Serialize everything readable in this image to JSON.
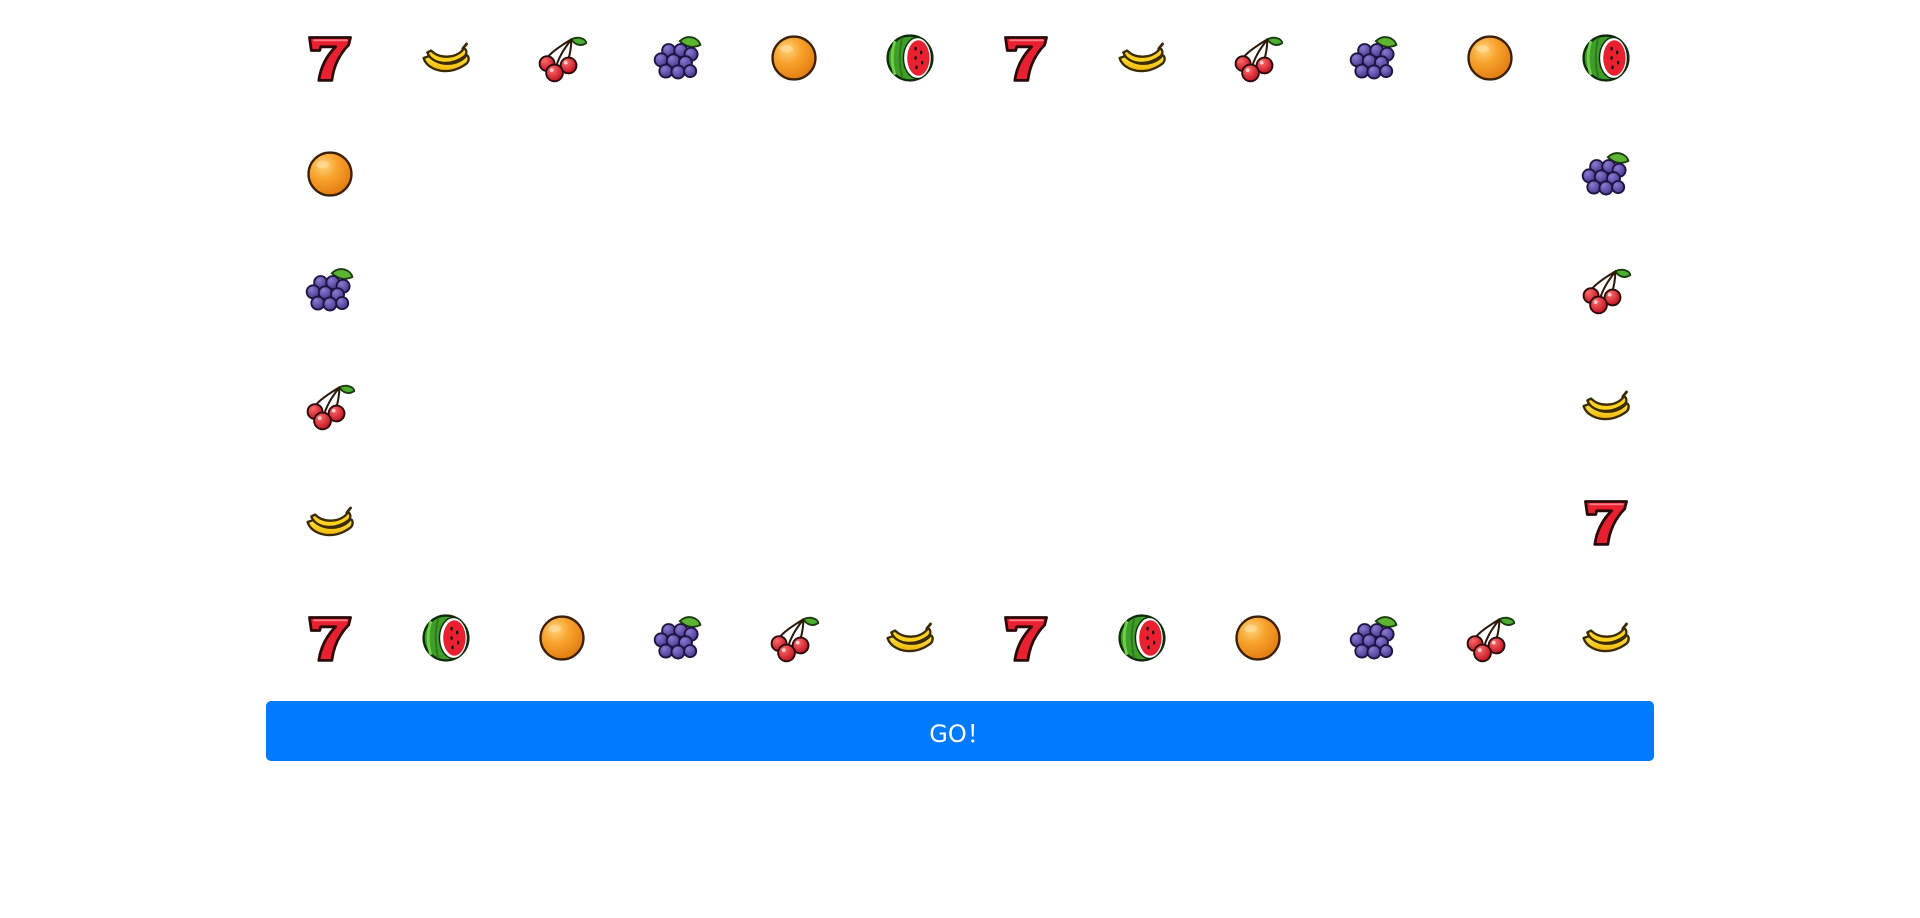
{
  "go_button_label": "GO！",
  "accent_color": "#007bff",
  "slot_ring": {
    "top_row": [
      "seven-icon",
      "banana-icon",
      "cherry-icon",
      "grape-icon",
      "orange-icon",
      "watermelon-icon",
      "seven-icon",
      "banana-icon",
      "cherry-icon",
      "grape-icon",
      "orange-icon",
      "watermelon-icon"
    ],
    "right_column": [
      "grape-icon",
      "cherry-icon",
      "banana-icon",
      "seven-icon"
    ],
    "bottom_row": [
      "seven-icon",
      "watermelon-icon",
      "orange-icon",
      "grape-icon",
      "cherry-icon",
      "banana-icon",
      "seven-icon",
      "watermelon-icon",
      "orange-icon",
      "grape-icon",
      "cherry-icon",
      "banana-icon"
    ],
    "left_column": [
      "orange-icon",
      "grape-icon",
      "cherry-icon",
      "banana-icon"
    ]
  }
}
